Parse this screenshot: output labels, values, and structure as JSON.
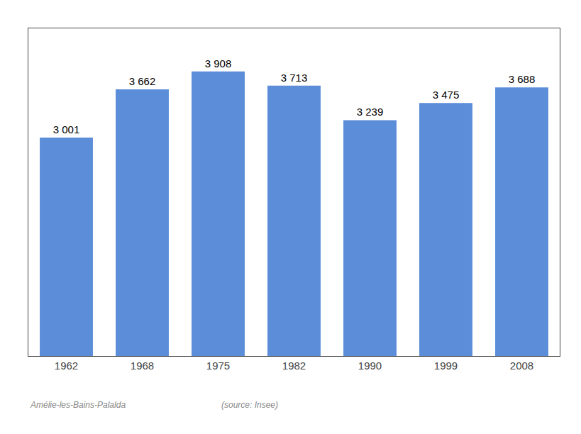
{
  "chart_data": {
    "type": "bar",
    "subtitle": "Amélie-les-Bains-Palalda",
    "annotations": [
      "(source: Insee)"
    ],
    "categories": [
      "1962",
      "1968",
      "1975",
      "1982",
      "1990",
      "1999",
      "2008"
    ],
    "values": [
      3001,
      3662,
      3908,
      3713,
      3239,
      3475,
      3688
    ],
    "value_labels": [
      "3 001",
      "3 662",
      "3 908",
      "3 713",
      "3 239",
      "3 475",
      "3 688"
    ],
    "data_labels": true,
    "color": "#5b8dd9",
    "ylim": [
      0,
      4500
    ],
    "tick_labels": "x",
    "grid": false
  }
}
